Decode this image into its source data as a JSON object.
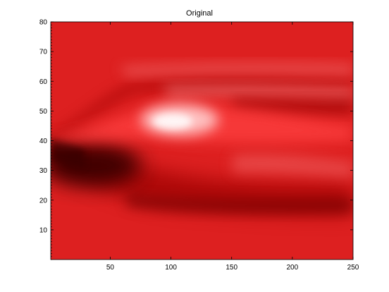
{
  "chart_data": {
    "type": "heatmap",
    "title": "Original",
    "xlabel": "",
    "ylabel": "",
    "xlim": [
      1,
      250
    ],
    "ylim": [
      0,
      80
    ],
    "x_ticks": [
      50,
      100,
      150,
      200,
      250
    ],
    "y_ticks": [
      10,
      20,
      30,
      40,
      50,
      60,
      70,
      80
    ],
    "grid": false,
    "colormap": "red-hot",
    "colors": {
      "background_red": "#de2020",
      "dark_red": "#4a0000",
      "bright_highlight": "#ffe8e8"
    },
    "features": [
      {
        "name": "dark core",
        "x": 40,
        "y": 34,
        "value": 0.08
      },
      {
        "name": "bright plume",
        "x": 110,
        "y": 47,
        "value": 0.98
      },
      {
        "name": "upper light band",
        "x": 170,
        "y": 64,
        "value": 0.7
      },
      {
        "name": "lower dark band",
        "x": 200,
        "y": 21,
        "value": 0.3
      }
    ]
  }
}
